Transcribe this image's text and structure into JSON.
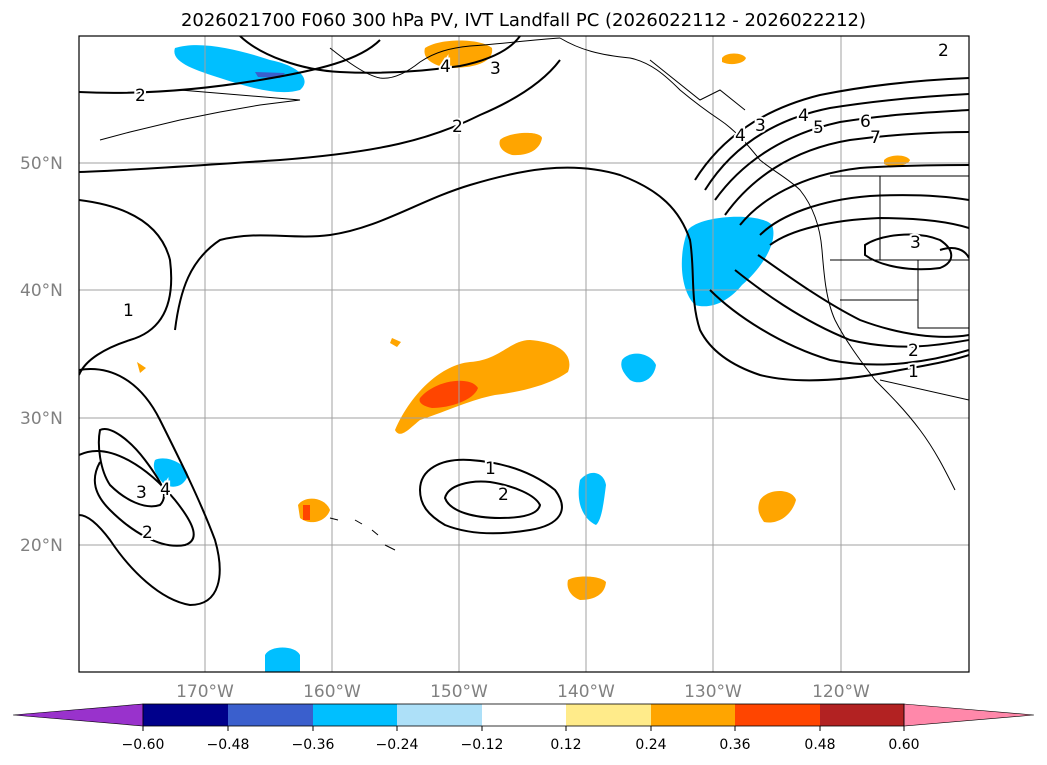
{
  "title": "2026021700 F060 300 hPa PV, IVT Landfall PC (2026022112 - 2026022212)",
  "lat_labels": [
    "50°N",
    "40°N",
    "30°N",
    "20°N"
  ],
  "lon_labels": [
    "170°W",
    "160°W",
    "150°W",
    "140°W",
    "130°W",
    "120°W"
  ],
  "colorbar": {
    "tick_labels": [
      "−0.60",
      "−0.48",
      "−0.36",
      "−0.24",
      "−0.12",
      "0.12",
      "0.24",
      "0.36",
      "0.48",
      "0.60"
    ],
    "colors": [
      "#9932CC",
      "#00008B",
      "#3A5FCD",
      "#00BFFF",
      "#ADE0F8",
      "#FFFFFF",
      "#FFEB8A",
      "#FFA500",
      "#FF4500",
      "#B22222",
      "#FF88AA"
    ],
    "extend": "both"
  },
  "contour_labels": [
    "2",
    "4",
    "3",
    "2",
    "1",
    "3",
    "4",
    "2",
    "1",
    "2",
    "4",
    "5",
    "6",
    "3",
    "2",
    "1",
    "3",
    "4",
    "2",
    "7"
  ],
  "colors": {
    "contour": "#000000",
    "grid": "#A0A0A0",
    "coast": "#000000"
  }
}
